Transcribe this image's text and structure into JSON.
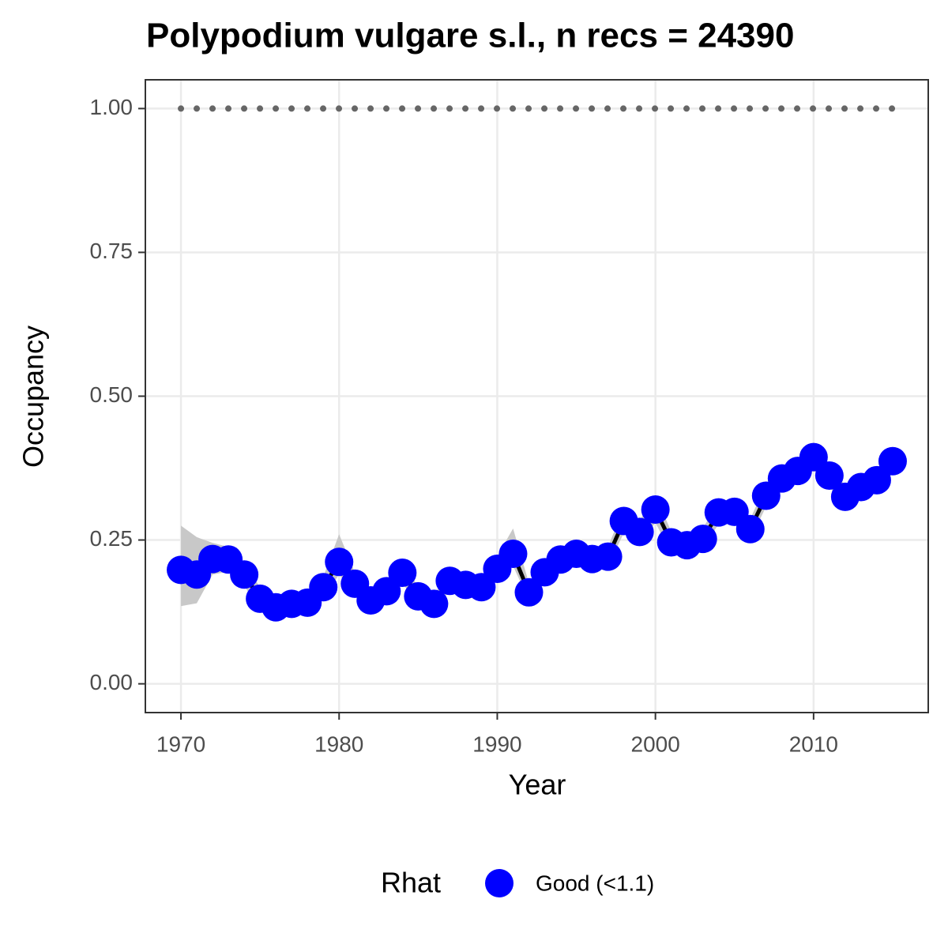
{
  "chart_data": {
    "type": "line",
    "title": "Polypodium vulgare s.l., n recs = 24390",
    "x_label": "Year",
    "y_label": "Occupancy",
    "legend_title": "Rhat",
    "x": [
      1970,
      1971,
      1972,
      1973,
      1974,
      1975,
      1976,
      1977,
      1978,
      1979,
      1980,
      1981,
      1982,
      1983,
      1984,
      1985,
      1986,
      1987,
      1988,
      1989,
      1990,
      1991,
      1992,
      1993,
      1994,
      1995,
      1996,
      1997,
      1998,
      1999,
      2000,
      2001,
      2002,
      2003,
      2004,
      2005,
      2006,
      2007,
      2008,
      2009,
      2010,
      2011,
      2012,
      2013,
      2014,
      2015
    ],
    "series": [
      {
        "name": "Good (<1.1)",
        "color": "#0000ff",
        "line_color": "#000000",
        "values": [
          0.198,
          0.19,
          0.217,
          0.216,
          0.19,
          0.148,
          0.133,
          0.139,
          0.141,
          0.168,
          0.212,
          0.174,
          0.145,
          0.161,
          0.193,
          0.152,
          0.139,
          0.179,
          0.172,
          0.168,
          0.2,
          0.226,
          0.159,
          0.194,
          0.216,
          0.226,
          0.217,
          0.221,
          0.283,
          0.264,
          0.303,
          0.246,
          0.241,
          0.252,
          0.298,
          0.299,
          0.269,
          0.327,
          0.357,
          0.37,
          0.394,
          0.362,
          0.325,
          0.342,
          0.354,
          0.387
        ],
        "lower": [
          0.135,
          0.14,
          0.19,
          0.195,
          0.17,
          0.13,
          0.12,
          0.125,
          0.128,
          0.15,
          0.19,
          0.155,
          0.13,
          0.145,
          0.175,
          0.138,
          0.125,
          0.163,
          0.157,
          0.153,
          0.182,
          0.205,
          0.145,
          0.178,
          0.2,
          0.21,
          0.2,
          0.205,
          0.262,
          0.245,
          0.28,
          0.228,
          0.224,
          0.235,
          0.278,
          0.28,
          0.252,
          0.308,
          0.337,
          0.35,
          0.372,
          0.342,
          0.307,
          0.323,
          0.335,
          0.366
        ],
        "upper": [
          0.275,
          0.255,
          0.245,
          0.238,
          0.21,
          0.168,
          0.148,
          0.153,
          0.156,
          0.186,
          0.26,
          0.193,
          0.162,
          0.178,
          0.215,
          0.168,
          0.155,
          0.196,
          0.188,
          0.184,
          0.222,
          0.27,
          0.175,
          0.211,
          0.233,
          0.243,
          0.235,
          0.238,
          0.305,
          0.284,
          0.327,
          0.265,
          0.258,
          0.27,
          0.318,
          0.319,
          0.287,
          0.347,
          0.378,
          0.391,
          0.416,
          0.383,
          0.344,
          0.362,
          0.374,
          0.408
        ]
      }
    ],
    "band_color": "#c8c8c8",
    "ref_line": 1,
    "ref_color": "#666666",
    "xlim": [
      1967.75,
      2017.25
    ],
    "xticks": [
      1970,
      1980,
      1990,
      2000,
      2010
    ],
    "ylim": [
      -0.05,
      1.05
    ],
    "yticks": [
      {
        "value": 0,
        "label": "0.00"
      },
      {
        "value": 0.25,
        "label": "0.25"
      },
      {
        "value": 0.5,
        "label": "0.50"
      },
      {
        "value": 0.75,
        "label": "0.75"
      },
      {
        "value": 1,
        "label": "1.00"
      }
    ],
    "grid": true
  }
}
